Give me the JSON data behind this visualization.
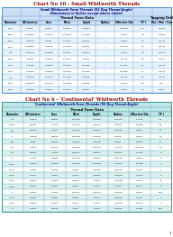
{
  "title1": "Chart No 10 - Small Whitworth Threads",
  "subtitle1a": "Small Whitworth Form Threads (55 Deg Thread Angle)",
  "subtitle1b": "Dimensions in Inches except where stated",
  "section1a": "Thread Form Data",
  "section1b": "Tapping Drill",
  "headers1": [
    "Diameter",
    "O/Diameter",
    "Core",
    "Pitch",
    "Depth",
    "Radius",
    "Effective Dia",
    "T P I",
    "Dia / Mm / Frac"
  ],
  "rows1": [
    [
      "1/16\"",
      "0.0625",
      "0.0514",
      "0.00909",
      "0.00554",
      "--",
      "0.05695",
      "60",
      "No 56"
    ],
    [
      "3/64\"",
      "0.046875",
      "0.03775",
      "0.00756",
      "0.00455",
      "--",
      "0.0423",
      "80",
      "1.0mm"
    ],
    [
      "3/32\"",
      "0.09375",
      "0.0786",
      "0.01000",
      "0.00613",
      "--",
      "0.0862",
      "32",
      "No 45"
    ],
    [
      "7/64\"",
      "0.109375",
      "0.09375",
      "0.01000",
      "0.00613",
      "--",
      "0.10165",
      "40",
      "No 45"
    ],
    [
      "1/8\"",
      "0.125000",
      "0.10485",
      "0.01250",
      "0.00767",
      "--",
      "0.1149",
      "32",
      "No 31"
    ],
    [
      "5/32\"",
      "0.15625",
      "0.13360",
      "0.01250",
      "0.00767",
      "--",
      "0.1449",
      "28",
      "No 29"
    ],
    [
      "3/16\"",
      "0.18750",
      "0.15824",
      "0.01563",
      "0.00959",
      "--",
      "0.17287",
      "26",
      "No 28"
    ],
    [
      "7/32\"",
      "0.21875",
      "0.18393",
      "0.01786",
      "0.01096",
      "--",
      "0.20184",
      "11",
      "No 24"
    ],
    [
      "1/4\"",
      "0.25000",
      "0.21375",
      "0.01786",
      "0.01096",
      "--",
      "0.2319",
      "28",
      "No 25"
    ],
    [
      "9/32\"",
      "0.28125",
      "0.24178",
      "0.01786",
      "0.01096",
      "--",
      "0.2615",
      "26",
      "1/4\""
    ],
    [
      "5/16\"",
      "0.31250",
      "0.26578",
      "0.02000",
      "0.01227",
      "--",
      "0.2891",
      "22",
      "1.084\""
    ]
  ],
  "title2": "Chart No 6 - 'Continental' Whitworth Threads",
  "subtitle2": "'Continental' Whitworth Form Threads (55 Deg Thread Angle)",
  "section2": "Thread Form Data",
  "headers2": [
    "Diameter",
    "O/Diameter",
    "Core",
    "Pitch",
    "Depth",
    "Radius",
    "Effective Dia",
    "T P I"
  ],
  "rows2": [
    [
      "3/4\"",
      "0.7620",
      "0.6566",
      "0.10000",
      "0.05625",
      "0.00000",
      "0.7143",
      "20"
    ],
    [
      "13/16\"",
      "0.8125",
      "0.7071",
      "0.11111",
      "0.06100",
      "0.00875",
      "0.7698",
      "18"
    ],
    [
      "7/8\"",
      "0.8750",
      "0.7671",
      "0.11750",
      "0.06427",
      "0.00000",
      "0.8211",
      "16"
    ],
    [
      "1\"",
      "1.0000",
      "0.8442",
      "0.14285",
      "0.04042",
      "0.0675",
      "0.9221",
      "12"
    ],
    [
      "5/8\"",
      "0.625",
      "0.5000",
      "0.08000",
      "0.04375",
      "0.0051",
      "0.5625",
      "14"
    ],
    [
      "3/4\"",
      "0.7500",
      "0.6700",
      "0.08000",
      "0.04475",
      "-0.0237",
      "0.6750a",
      "16"
    ],
    [
      "3/4\"",
      "0.8000",
      "0.7573",
      "0.09271",
      "0.05371",
      "-0.0437",
      "0.7461",
      "9"
    ],
    [
      "1\"",
      "1.0000",
      "0.8888",
      "0.10000",
      "0.05500",
      "0.00778",
      "0.9500",
      "8"
    ],
    [
      "1.1/8\"",
      "1.1250",
      "0.9640",
      "0.14250",
      "0.10478",
      "-0.1000",
      "1.0795",
      "7"
    ],
    [
      "1.1/4\"",
      "1.2500",
      "1.0800",
      "1.0800",
      "0.08600",
      "0.00000",
      "1.1150",
      "1"
    ],
    [
      "1.3/8\"",
      "1.3750",
      "1.2500",
      "1.2000",
      "0.06000",
      "0.04000",
      "1.3050",
      "5"
    ],
    [
      "1.1/2\"",
      "1.5000",
      "1.3000",
      "1.2000",
      "0.1010",
      "0.10435",
      "1.4007",
      "8"
    ],
    [
      "1.5/8\"",
      "1.6250",
      "1.4500",
      "1.4000",
      "0.1000",
      "0.1455",
      "1.5277",
      "6"
    ],
    [
      "2\"",
      "2.0000",
      "1.7184",
      "0.02271",
      "0.41279",
      "0.00043",
      "1.8401",
      "4ths"
    ],
    [
      "2.1/4\"",
      "2.2500",
      "2.0500",
      "1.0000",
      "0.1515",
      "0.00005",
      "2.1471",
      "3"
    ],
    [
      "2.1/2\"",
      "2.5000",
      "2.2571",
      "1.7500",
      "0.1447",
      "0.03040",
      "1.3775",
      "4"
    ],
    [
      "3\"",
      "3.0000",
      "2.8375",
      "1.000",
      "0.1004",
      "0.02004",
      "1.1560",
      "3ths"
    ]
  ],
  "bg_color": "#ffffff",
  "header_bg1": "#cce0f5",
  "header_bg2": "#c0e8e8",
  "row_even1": "#e8f4fd",
  "row_even2": "#daf0f0",
  "row_odd": "#ffffff",
  "title1_color": "#8b0000",
  "title2_color": "#8b0000",
  "subtitle_color": "#00008b",
  "border_color1": "#5090c8",
  "border_color2": "#409898",
  "text_color": "#000000",
  "fs_title": 3.8,
  "fs_subtitle": 2.4,
  "fs_section": 2.6,
  "fs_header": 2.0,
  "fs_cell": 1.75,
  "fs_page": 3.0
}
